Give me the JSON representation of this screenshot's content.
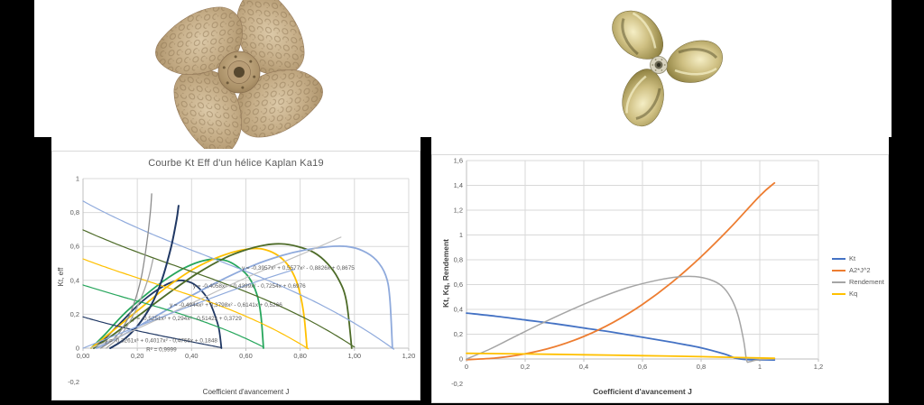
{
  "background": {
    "canvas_color": "#000000",
    "band_color": "#ffffff"
  },
  "images": {
    "left_propeller": "four-blade bronze Kaplan propeller, hammered finish",
    "right_propeller": "three-blade polished brass propeller"
  },
  "chart_data": [
    {
      "type": "line",
      "title": "Courbe Kt Eff d'un hélice Kaplan Ka19",
      "xlabel": "Coefficient d'avancement J",
      "ylabel": "Kt, eff",
      "xlim": [
        0,
        1.2
      ],
      "ylim": [
        -0.2,
        1
      ],
      "grid": true,
      "legend_position": "none",
      "xticks": [
        {
          "v": 0,
          "label": "0,00"
        },
        {
          "v": 0.2,
          "label": "0,20"
        },
        {
          "v": 0.4,
          "label": "0,40"
        },
        {
          "v": 0.6,
          "label": "0,60"
        },
        {
          "v": 0.8,
          "label": "0,80"
        },
        {
          "v": 1.0,
          "label": "1,00"
        },
        {
          "v": 1.2,
          "label": "1,20"
        }
      ],
      "yticks": [
        {
          "v": 1,
          "label": "1"
        },
        {
          "v": 0.8,
          "label": "0,8"
        },
        {
          "v": 0.6,
          "label": "0,6"
        },
        {
          "v": 0.4,
          "label": "0,4"
        },
        {
          "v": 0.2,
          "label": "0,2"
        },
        {
          "v": 0,
          "label": "0"
        },
        {
          "v": -0.2,
          "label": "-0,2"
        }
      ],
      "series": [
        {
          "name": "kt-bell-navy",
          "color": "#203864",
          "width": 1.8,
          "points": [
            [
              0.04,
              0
            ],
            [
              0.08,
              0.055
            ],
            [
              0.12,
              0.12
            ],
            [
              0.16,
              0.185
            ],
            [
              0.2,
              0.25
            ],
            [
              0.24,
              0.305
            ],
            [
              0.28,
              0.35
            ],
            [
              0.32,
              0.385
            ],
            [
              0.36,
              0.4
            ],
            [
              0.4,
              0.385
            ],
            [
              0.43,
              0.35
            ],
            [
              0.46,
              0.29
            ],
            [
              0.48,
              0.22
            ],
            [
              0.5,
              0.12
            ],
            [
              0.51,
              0
            ]
          ]
        },
        {
          "name": "kt-bell-green",
          "color": "#27A65C",
          "width": 1.8,
          "points": [
            [
              0.03,
              0
            ],
            [
              0.08,
              0.08
            ],
            [
              0.15,
              0.2
            ],
            [
              0.22,
              0.3
            ],
            [
              0.3,
              0.4
            ],
            [
              0.37,
              0.47
            ],
            [
              0.43,
              0.51
            ],
            [
              0.48,
              0.525
            ],
            [
              0.53,
              0.515
            ],
            [
              0.57,
              0.48
            ],
            [
              0.61,
              0.42
            ],
            [
              0.64,
              0.32
            ],
            [
              0.655,
              0.2
            ],
            [
              0.665,
              0
            ]
          ]
        },
        {
          "name": "kt-bell-yellow",
          "color": "#FFC000",
          "width": 1.8,
          "points": [
            [
              0.03,
              0
            ],
            [
              0.1,
              0.09
            ],
            [
              0.2,
              0.22
            ],
            [
              0.3,
              0.35
            ],
            [
              0.4,
              0.46
            ],
            [
              0.48,
              0.525
            ],
            [
              0.55,
              0.565
            ],
            [
              0.61,
              0.585
            ],
            [
              0.66,
              0.585
            ],
            [
              0.71,
              0.555
            ],
            [
              0.75,
              0.5
            ],
            [
              0.78,
              0.42
            ],
            [
              0.8,
              0.32
            ],
            [
              0.815,
              0.18
            ],
            [
              0.825,
              0
            ]
          ]
        },
        {
          "name": "kt-bell-darkgreen",
          "color": "#4D6B28",
          "width": 1.8,
          "points": [
            [
              0.04,
              0
            ],
            [
              0.12,
              0.09
            ],
            [
              0.22,
              0.21
            ],
            [
              0.32,
              0.33
            ],
            [
              0.42,
              0.44
            ],
            [
              0.52,
              0.53
            ],
            [
              0.6,
              0.58
            ],
            [
              0.67,
              0.608
            ],
            [
              0.73,
              0.615
            ],
            [
              0.79,
              0.6
            ],
            [
              0.85,
              0.565
            ],
            [
              0.9,
              0.5
            ],
            [
              0.94,
              0.41
            ],
            [
              0.97,
              0.28
            ],
            [
              0.99,
              0
            ]
          ]
        },
        {
          "name": "kt-bell-lightblue",
          "color": "#8FAADC",
          "width": 1.8,
          "points": [
            [
              0.05,
              0
            ],
            [
              0.15,
              0.08
            ],
            [
              0.27,
              0.19
            ],
            [
              0.4,
              0.31
            ],
            [
              0.52,
              0.41
            ],
            [
              0.63,
              0.49
            ],
            [
              0.73,
              0.545
            ],
            [
              0.82,
              0.58
            ],
            [
              0.9,
              0.598
            ],
            [
              0.97,
              0.6
            ],
            [
              1.03,
              0.575
            ],
            [
              1.08,
              0.52
            ],
            [
              1.115,
              0.43
            ],
            [
              1.13,
              0.3
            ],
            [
              1.14,
              0
            ]
          ]
        },
        {
          "name": "fit-lightblue",
          "color": "#8FAADC",
          "width": 1.2,
          "poly": [
            -0.3957,
            0.5577,
            -0.8826,
            0.8675
          ],
          "range": [
            0,
            1.145
          ]
        },
        {
          "name": "fit-darkgreen",
          "color": "#4D6B28",
          "width": 1.2,
          "poly": [
            -0.4058,
            0.4399,
            -0.7254,
            0.6976
          ],
          "range": [
            0,
            1.0
          ]
        },
        {
          "name": "fit-yellow",
          "color": "#FFC000",
          "width": 1.2,
          "poly": [
            -0.4944,
            0.3798,
            -0.6141,
            0.5266
          ],
          "range": [
            0,
            0.83
          ]
        },
        {
          "name": "fit-green",
          "color": "#27A65C",
          "width": 1.2,
          "poly": [
            -0.5251,
            0.294,
            -0.5142,
            0.3729
          ],
          "range": [
            0,
            0.665
          ]
        },
        {
          "name": "fit-navy",
          "color": "#203864",
          "width": 1.2,
          "poly": [
            -0.3261,
            0.4017,
            -0.4766,
            0.1848
          ],
          "range": [
            0,
            0.51
          ]
        },
        {
          "name": "steep-gray-1",
          "color": "#8C8C8C",
          "width": 1.3,
          "points": [
            [
              0.065,
              0
            ],
            [
              0.11,
              0.05
            ],
            [
              0.15,
              0.13
            ],
            [
              0.185,
              0.25
            ],
            [
              0.215,
              0.42
            ],
            [
              0.235,
              0.62
            ],
            [
              0.248,
              0.8
            ],
            [
              0.253,
              0.91
            ]
          ]
        },
        {
          "name": "steep-gray-2",
          "color": "#A5A5A5",
          "width": 1.3,
          "points": [
            [
              0.085,
              0
            ],
            [
              0.13,
              0.06
            ],
            [
              0.17,
              0.15
            ],
            [
              0.21,
              0.28
            ],
            [
              0.24,
              0.41
            ],
            [
              0.258,
              0.525
            ]
          ]
        },
        {
          "name": "steep-navy",
          "color": "#203864",
          "width": 2,
          "points": [
            [
              0.1,
              0
            ],
            [
              0.15,
              0.05
            ],
            [
              0.2,
              0.13
            ],
            [
              0.25,
              0.25
            ],
            [
              0.29,
              0.4
            ],
            [
              0.325,
              0.6
            ],
            [
              0.345,
              0.76
            ],
            [
              0.352,
              0.84
            ]
          ]
        },
        {
          "name": "diag-gray",
          "color": "#BFBFBF",
          "width": 1.2,
          "points": [
            [
              0.03,
              0
            ],
            [
              0.2,
              0.115
            ],
            [
              0.4,
              0.265
            ],
            [
              0.6,
              0.415
            ],
            [
              0.8,
              0.55
            ],
            [
              0.95,
              0.655
            ]
          ]
        },
        {
          "name": "diag-lightblue",
          "color": "#8FAADC",
          "width": 1.2,
          "points": [
            [
              0.0,
              0
            ],
            [
              0.3,
              0.19
            ],
            [
              0.6,
              0.37
            ],
            [
              0.78,
              0.465
            ]
          ]
        }
      ],
      "annotations": [
        {
          "text": "y = -0,3957x³ + 0,5577x² - 0,8826x + 0,8675",
          "x": 0.585,
          "y": 0.463
        },
        {
          "text": "y = -0,4058x³ + 0,4399x² - 0,7254x + 0,6976",
          "x": 0.405,
          "y": 0.356
        },
        {
          "text": "y = -0,4944x³ + 0,3798x² - 0,6141x + 0,5266",
          "x": 0.319,
          "y": 0.245
        },
        {
          "text": "y = -0,5251x³ + 0,294x² - 0,5142x + 0,3729",
          "x": 0.181,
          "y": 0.165
        },
        {
          "text": "y = -0,3261x³ + 0,4017x² - 0,4766x + 0,1848",
          "x": 0.08,
          "y": 0.035
        },
        {
          "text": "R² = 0,9999",
          "x": 0.233,
          "y": -0.018
        }
      ]
    },
    {
      "type": "line",
      "title": "",
      "xlabel": "Coefficient d'avancement J",
      "ylabel": "Kt, Kq, Rendement",
      "xlim": [
        0,
        1.2
      ],
      "ylim": [
        -0.2,
        1.6
      ],
      "grid": true,
      "legend_position": "right",
      "legend": [
        "Kt",
        "A2*J^2",
        "Rendement",
        "Kq"
      ],
      "xticks": [
        {
          "v": 0,
          "label": "0"
        },
        {
          "v": 0.2,
          "label": "0,2"
        },
        {
          "v": 0.4,
          "label": "0,4"
        },
        {
          "v": 0.6,
          "label": "0,6"
        },
        {
          "v": 0.8,
          "label": "0,8"
        },
        {
          "v": 1.0,
          "label": "1"
        },
        {
          "v": 1.2,
          "label": "1,2"
        }
      ],
      "yticks": [
        {
          "v": 1.6,
          "label": "1,6"
        },
        {
          "v": 1.4,
          "label": "1,4"
        },
        {
          "v": 1.2,
          "label": "1,2"
        },
        {
          "v": 1.0,
          "label": "1"
        },
        {
          "v": 0.8,
          "label": "0,8"
        },
        {
          "v": 0.6,
          "label": "0,6"
        },
        {
          "v": 0.4,
          "label": "0,4"
        },
        {
          "v": 0.2,
          "label": "0,2"
        },
        {
          "v": 0,
          "label": "0"
        },
        {
          "v": -0.2,
          "label": "-0,2"
        }
      ],
      "series": [
        {
          "name": "Kt",
          "color": "#4472C4",
          "width": 1.8,
          "points": [
            [
              0,
              0.37
            ],
            [
              0.1,
              0.345
            ],
            [
              0.2,
              0.315
            ],
            [
              0.3,
              0.285
            ],
            [
              0.4,
              0.25
            ],
            [
              0.5,
              0.215
            ],
            [
              0.6,
              0.175
            ],
            [
              0.7,
              0.135
            ],
            [
              0.8,
              0.09
            ],
            [
              0.88,
              0.04
            ],
            [
              0.92,
              0.005
            ],
            [
              0.96,
              -0.005
            ],
            [
              1.05,
              -0.008
            ]
          ]
        },
        {
          "name": "A2*J^2",
          "color": "#ED7D31",
          "width": 1.8,
          "points": [
            [
              0,
              -0.005
            ],
            [
              0.1,
              0.008
            ],
            [
              0.2,
              0.042
            ],
            [
              0.3,
              0.098
            ],
            [
              0.4,
              0.182
            ],
            [
              0.5,
              0.295
            ],
            [
              0.6,
              0.44
            ],
            [
              0.7,
              0.617
            ],
            [
              0.8,
              0.825
            ],
            [
              0.9,
              1.06
            ],
            [
              1.0,
              1.315
            ],
            [
              1.05,
              1.42
            ]
          ]
        },
        {
          "name": "Rendement",
          "color": "#A5A5A5",
          "width": 1.5,
          "points": [
            [
              0,
              0
            ],
            [
              0.08,
              0.08
            ],
            [
              0.16,
              0.175
            ],
            [
              0.25,
              0.28
            ],
            [
              0.35,
              0.39
            ],
            [
              0.45,
              0.49
            ],
            [
              0.55,
              0.575
            ],
            [
              0.65,
              0.635
            ],
            [
              0.72,
              0.662
            ],
            [
              0.78,
              0.665
            ],
            [
              0.83,
              0.64
            ],
            [
              0.87,
              0.59
            ],
            [
              0.9,
              0.5
            ],
            [
              0.925,
              0.36
            ],
            [
              0.945,
              0.15
            ],
            [
              0.955,
              -0.01
            ],
            [
              0.965,
              -0.022
            ],
            [
              0.98,
              -0.012
            ],
            [
              1.0,
              -0.005
            ],
            [
              1.05,
              0
            ]
          ]
        },
        {
          "name": "Kq",
          "color": "#FFC000",
          "width": 1.8,
          "points": [
            [
              0,
              0.046
            ],
            [
              0.2,
              0.041
            ],
            [
              0.4,
              0.034
            ],
            [
              0.6,
              0.027
            ],
            [
              0.8,
              0.019
            ],
            [
              0.95,
              0.011
            ],
            [
              1.05,
              0.006
            ]
          ]
        }
      ],
      "annotations": []
    }
  ]
}
